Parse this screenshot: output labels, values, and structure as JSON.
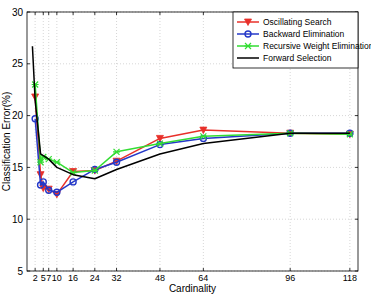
{
  "chart_data": {
    "type": "line",
    "x_label": "Cardinality",
    "y_label": "Classification Error(%)",
    "xlim": [
      -1,
      121
    ],
    "ylim": [
      5,
      30
    ],
    "xticks": [
      2,
      5,
      7,
      10,
      16,
      24,
      32,
      48,
      64,
      96,
      118
    ],
    "yticks": [
      5,
      10,
      15,
      20,
      25,
      30
    ],
    "grid": true,
    "legend": "upper right",
    "series": [
      {
        "name": "Oscillating Search",
        "color": "#e8302a",
        "marker": "triangle-down",
        "x": [
          2,
          4,
          5,
          7,
          10,
          16,
          24,
          32,
          48,
          64,
          96,
          118
        ],
        "values": [
          21.8,
          14.3,
          13.0,
          12.9,
          12.4,
          14.6,
          14.7,
          15.6,
          17.8,
          18.6,
          18.3,
          18.2
        ]
      },
      {
        "name": "Backward Elimination",
        "color": "#2438c8",
        "marker": "circle",
        "x": [
          2,
          4,
          5,
          7,
          10,
          16,
          24,
          32,
          48,
          64,
          96,
          118
        ],
        "values": [
          19.7,
          13.3,
          13.6,
          12.8,
          12.6,
          13.6,
          14.8,
          15.5,
          17.2,
          17.8,
          18.3,
          18.3
        ]
      },
      {
        "name": "Recursive Weight Elimination",
        "color": "#33dd33",
        "marker": "x",
        "x": [
          2,
          4,
          5,
          7,
          10,
          16,
          24,
          32,
          48,
          64,
          96,
          118
        ],
        "values": [
          23.0,
          15.5,
          16.0,
          15.8,
          15.5,
          14.5,
          14.7,
          16.5,
          17.3,
          18.0,
          18.3,
          18.2
        ]
      },
      {
        "name": "Forward Selection",
        "color": "#000000",
        "marker": "none",
        "x": [
          1,
          2,
          4,
          7,
          10,
          16,
          24,
          32,
          48,
          64,
          96,
          118
        ],
        "values": [
          26.7,
          21.5,
          16.3,
          15.8,
          15.0,
          14.3,
          13.9,
          14.8,
          16.3,
          17.3,
          18.3,
          18.3
        ]
      }
    ]
  }
}
